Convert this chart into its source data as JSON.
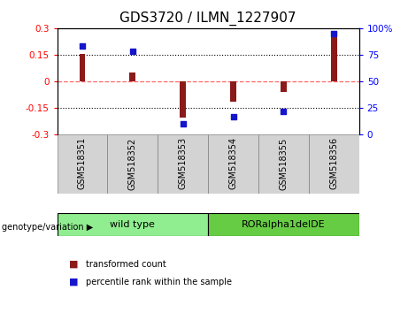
{
  "title": "GDS3720 / ILMN_1227907",
  "samples": [
    "GSM518351",
    "GSM518352",
    "GSM518353",
    "GSM518354",
    "GSM518355",
    "GSM518356"
  ],
  "transformed_count": [
    0.155,
    0.048,
    -0.205,
    -0.115,
    -0.058,
    0.275
  ],
  "percentile_rank": [
    83,
    78,
    10,
    17,
    22,
    95
  ],
  "ylim_left": [
    -0.3,
    0.3
  ],
  "ylim_right": [
    0,
    100
  ],
  "yticks_left": [
    -0.3,
    -0.15,
    0,
    0.15,
    0.3
  ],
  "yticks_right": [
    0,
    25,
    50,
    75,
    100
  ],
  "bar_color": "#8B1A1A",
  "dot_color": "#1515CC",
  "bar_width": 0.12,
  "dot_size": 25,
  "groups": [
    {
      "label": "wild type",
      "indices": [
        0,
        1,
        2
      ],
      "color": "#90EE90"
    },
    {
      "label": "RORalpha1delDE",
      "indices": [
        3,
        4,
        5
      ],
      "color": "#66CC44"
    }
  ],
  "group_label_prefix": "genotype/variation",
  "legend_bar_label": "transformed count",
  "legend_dot_label": "percentile rank within the sample",
  "hline_zero_color": "#FF6666",
  "hline_zero_style": "dashed",
  "grid_color": "black",
  "grid_style": "dotted",
  "title_fontsize": 11,
  "axis_tick_fontsize": 7.5,
  "label_fontsize": 8,
  "sample_label_color": "lightgray",
  "sample_label_fontsize": 7
}
